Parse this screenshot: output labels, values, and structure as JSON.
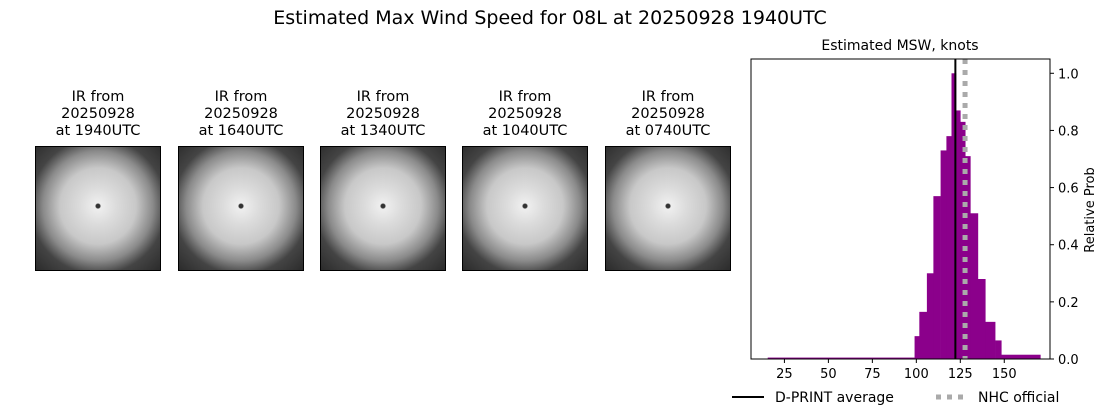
{
  "title": "Estimated Max Wind Speed for 08L at 20250928 1940UTC",
  "panels": [
    {
      "label": "IR from\n20250928\nat 1940UTC"
    },
    {
      "label": "IR from\n20250928\nat 1640UTC"
    },
    {
      "label": "IR from\n20250928\nat 1340UTC"
    },
    {
      "label": "IR from\n20250928\nat 1040UTC"
    },
    {
      "label": "IR from\n20250928\nat 0740UTC"
    }
  ],
  "chart_data": {
    "type": "bar",
    "title": "Estimated MSW, knots",
    "xlabel": "",
    "ylabel": "Relative Prob",
    "xlim": [
      6,
      176
    ],
    "ylim": [
      0,
      1.05
    ],
    "xticks": [
      25,
      50,
      75,
      100,
      125,
      150
    ],
    "yticks": [
      0.0,
      0.2,
      0.4,
      0.6,
      0.8,
      1.0
    ],
    "bin_edges": [
      15.5,
      99,
      101.7,
      106,
      109.7,
      113.8,
      117.1,
      120,
      122.5,
      125,
      127.8,
      130.7,
      135,
      139.2,
      144.8,
      148.3,
      170.5
    ],
    "values": [
      0.005,
      0.08,
      0.165,
      0.3,
      0.57,
      0.73,
      0.78,
      1.0,
      0.87,
      0.83,
      0.71,
      0.51,
      0.28,
      0.13,
      0.065,
      0.015
    ],
    "bar_color": "#8b008b",
    "dprint_average": 122.2,
    "nhc_official": 127.7,
    "legend": [
      {
        "label": "D-PRINT average",
        "color": "#000000",
        "style": "solid"
      },
      {
        "label": "NHC official",
        "color": "#aaaaaa",
        "style": "dotted"
      }
    ],
    "legend_placement": "bottom"
  }
}
